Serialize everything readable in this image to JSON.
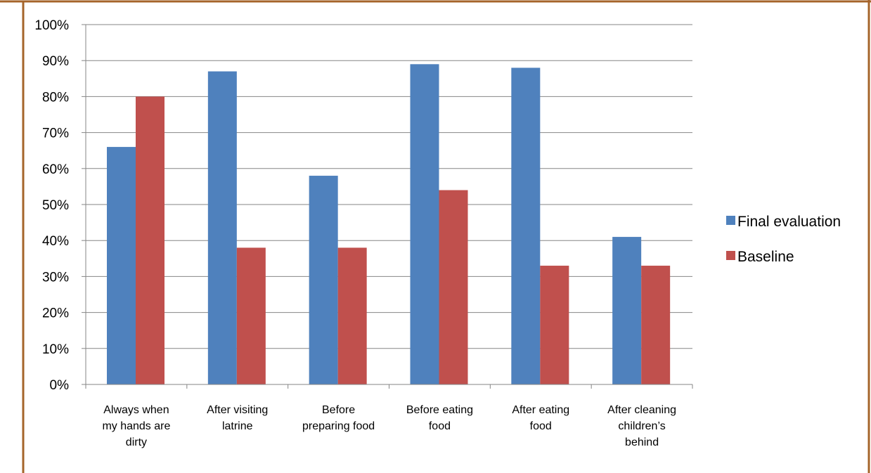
{
  "chart_data": {
    "type": "bar",
    "title": "",
    "xlabel": "",
    "ylabel": "",
    "ylim": [
      0,
      100
    ],
    "yticks": [
      "0%",
      "10%",
      "20%",
      "30%",
      "40%",
      "50%",
      "60%",
      "70%",
      "80%",
      "90%",
      "100%"
    ],
    "grid": true,
    "legend_position": "right",
    "categories": [
      [
        "Always when",
        "my hands are",
        "dirty"
      ],
      [
        "After visiting",
        "latrine"
      ],
      [
        "Before",
        "preparing food"
      ],
      [
        "Before eating",
        "food"
      ],
      [
        "After eating",
        "food"
      ],
      [
        "After cleaning",
        "children’s",
        "behind"
      ]
    ],
    "series": [
      {
        "name": "Final evaluation",
        "color": "#4F81BD",
        "values": [
          66,
          87,
          58,
          89,
          88,
          41
        ]
      },
      {
        "name": "Baseline",
        "color": "#C0504D",
        "values": [
          80,
          38,
          38,
          54,
          33,
          33
        ]
      }
    ]
  },
  "frame": {
    "border_color": "#A5642A"
  }
}
